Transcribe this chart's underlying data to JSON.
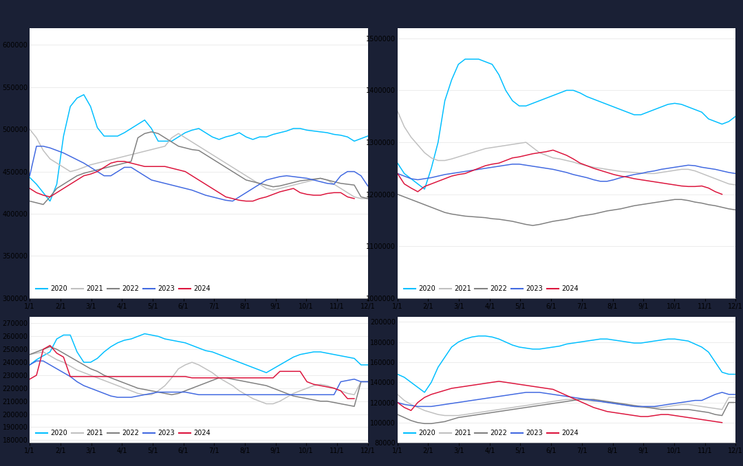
{
  "colors": {
    "2020": "#00BFFF",
    "2021": "#C0C0C0",
    "2022": "#808080",
    "2023": "#4169E1",
    "2024": "#DC143C"
  },
  "x_labels": [
    "1/1",
    "2/1",
    "3/1",
    "4/1",
    "5/1",
    "6/1",
    "7/1",
    "8/1",
    "9/1",
    "10/1",
    "11/1",
    "12/1"
  ],
  "top_left": {
    "ylim": [
      300000,
      620000
    ],
    "yticks": [
      300000,
      350000,
      400000,
      450000,
      500000,
      550000,
      600000
    ],
    "2020": [
      443000,
      435000,
      425000,
      415000,
      435000,
      492000,
      527000,
      537000,
      541000,
      527000,
      502000,
      492000,
      492000,
      492000,
      496000,
      501000,
      506000,
      511000,
      501000,
      486000,
      486000,
      486000,
      491000,
      496000,
      499000,
      501000,
      496000,
      491000,
      488000,
      491000,
      493000,
      496000,
      491000,
      488000,
      491000,
      491000,
      494000,
      496000,
      498000,
      501000,
      501000,
      499000,
      498000,
      497000,
      496000,
      494000,
      493000,
      491000,
      486000,
      489000,
      492000
    ],
    "2021": [
      500000,
      490000,
      475000,
      465000,
      460000,
      455000,
      450000,
      452000,
      455000,
      458000,
      460000,
      462000,
      464000,
      466000,
      468000,
      470000,
      472000,
      474000,
      476000,
      478000,
      480000,
      490000,
      495000,
      490000,
      485000,
      480000,
      475000,
      470000,
      465000,
      460000,
      455000,
      450000,
      445000,
      440000,
      435000,
      430000,
      428000,
      430000,
      432000,
      434000,
      436000,
      438000,
      440000,
      442000,
      440000,
      435000,
      430000,
      425000,
      420000,
      418000,
      418000
    ],
    "2022": [
      415000,
      413000,
      411000,
      420000,
      430000,
      435000,
      440000,
      445000,
      448000,
      450000,
      452000,
      454000,
      456000,
      458000,
      460000,
      462000,
      490000,
      495000,
      497000,
      495000,
      490000,
      485000,
      480000,
      478000,
      476000,
      475000,
      470000,
      465000,
      460000,
      455000,
      450000,
      445000,
      440000,
      438000,
      436000,
      434000,
      432000,
      433000,
      435000,
      437000,
      439000,
      440000,
      441000,
      442000,
      440000,
      438000,
      436000,
      435000,
      434000,
      420000,
      418000
    ],
    "2023": [
      445000,
      480000,
      480000,
      478000,
      475000,
      472000,
      468000,
      464000,
      460000,
      455000,
      450000,
      445000,
      445000,
      450000,
      455000,
      455000,
      450000,
      445000,
      440000,
      438000,
      436000,
      434000,
      432000,
      430000,
      428000,
      425000,
      422000,
      420000,
      418000,
      416000,
      415000,
      420000,
      425000,
      430000,
      435000,
      440000,
      442000,
      444000,
      445000,
      444000,
      443000,
      442000,
      440000,
      438000,
      436000,
      435000,
      445000,
      450000,
      450000,
      445000,
      433000
    ],
    "2024": [
      430000,
      425000,
      422000,
      420000,
      425000,
      430000,
      435000,
      440000,
      445000,
      447000,
      450000,
      455000,
      460000,
      462000,
      462000,
      460000,
      458000,
      456000,
      456000,
      456000,
      456000,
      454000,
      452000,
      450000,
      445000,
      440000,
      435000,
      430000,
      425000,
      420000,
      418000,
      416000,
      415000,
      415000,
      418000,
      420000,
      423000,
      426000,
      428000,
      430000,
      425000,
      423000,
      422000,
      422000,
      424000,
      425000,
      425000,
      420000,
      418000,
      null,
      null
    ]
  },
  "top_right": {
    "ylim": [
      1000000,
      1520000
    ],
    "yticks": [
      1000000,
      1100000,
      1200000,
      1300000,
      1400000,
      1500000
    ],
    "2020": [
      1260000,
      1240000,
      1230000,
      1220000,
      1210000,
      1250000,
      1300000,
      1380000,
      1420000,
      1450000,
      1460000,
      1460000,
      1460000,
      1455000,
      1450000,
      1430000,
      1400000,
      1380000,
      1370000,
      1370000,
      1375000,
      1380000,
      1385000,
      1390000,
      1395000,
      1400000,
      1400000,
      1395000,
      1388000,
      1383000,
      1378000,
      1373000,
      1368000,
      1363000,
      1358000,
      1353000,
      1353000,
      1358000,
      1363000,
      1368000,
      1373000,
      1375000,
      1373000,
      1368000,
      1363000,
      1358000,
      1345000,
      1340000,
      1335000,
      1340000,
      1350000
    ],
    "2021": [
      1360000,
      1330000,
      1310000,
      1295000,
      1280000,
      1270000,
      1265000,
      1265000,
      1268000,
      1272000,
      1276000,
      1280000,
      1284000,
      1288000,
      1290000,
      1292000,
      1294000,
      1296000,
      1298000,
      1300000,
      1290000,
      1280000,
      1275000,
      1270000,
      1268000,
      1265000,
      1262000,
      1258000,
      1255000,
      1252000,
      1250000,
      1248000,
      1246000,
      1244000,
      1243000,
      1242000,
      1241000,
      1240000,
      1240000,
      1242000,
      1244000,
      1246000,
      1248000,
      1248000,
      1245000,
      1240000,
      1235000,
      1230000,
      1225000,
      1220000,
      1218000
    ],
    "2022": [
      1200000,
      1195000,
      1190000,
      1185000,
      1180000,
      1175000,
      1170000,
      1165000,
      1162000,
      1160000,
      1158000,
      1157000,
      1156000,
      1155000,
      1153000,
      1152000,
      1150000,
      1148000,
      1145000,
      1142000,
      1140000,
      1142000,
      1145000,
      1148000,
      1150000,
      1152000,
      1155000,
      1158000,
      1160000,
      1162000,
      1165000,
      1168000,
      1170000,
      1172000,
      1175000,
      1178000,
      1180000,
      1182000,
      1184000,
      1186000,
      1188000,
      1190000,
      1190000,
      1188000,
      1185000,
      1183000,
      1180000,
      1178000,
      1175000,
      1172000,
      1170000
    ],
    "2023": [
      1240000,
      1235000,
      1230000,
      1228000,
      1230000,
      1232000,
      1235000,
      1238000,
      1240000,
      1242000,
      1244000,
      1246000,
      1248000,
      1250000,
      1252000,
      1254000,
      1256000,
      1258000,
      1258000,
      1256000,
      1254000,
      1252000,
      1250000,
      1248000,
      1245000,
      1242000,
      1238000,
      1235000,
      1232000,
      1228000,
      1225000,
      1225000,
      1228000,
      1232000,
      1235000,
      1238000,
      1240000,
      1243000,
      1245000,
      1248000,
      1250000,
      1252000,
      1254000,
      1256000,
      1255000,
      1252000,
      1250000,
      1248000,
      1245000,
      1242000,
      1240000
    ],
    "2024": [
      1240000,
      1220000,
      1212000,
      1205000,
      1215000,
      1220000,
      1225000,
      1230000,
      1235000,
      1238000,
      1240000,
      1245000,
      1250000,
      1255000,
      1258000,
      1260000,
      1265000,
      1270000,
      1272000,
      1275000,
      1278000,
      1280000,
      1282000,
      1285000,
      1280000,
      1275000,
      1268000,
      1260000,
      1255000,
      1250000,
      1246000,
      1242000,
      1238000,
      1235000,
      1233000,
      1230000,
      1228000,
      1226000,
      1224000,
      1222000,
      1220000,
      1218000,
      1216000,
      1215000,
      1215000,
      1216000,
      1212000,
      1205000,
      1200000,
      null,
      null
    ]
  },
  "bottom_left": {
    "ylim": [
      178000,
      275000
    ],
    "yticks": [
      180000,
      190000,
      200000,
      210000,
      220000,
      230000,
      240000,
      250000,
      260000,
      270000
    ],
    "2020": [
      238000,
      242000,
      245000,
      248000,
      258000,
      261000,
      261000,
      248000,
      240000,
      240000,
      243000,
      248000,
      252000,
      255000,
      257000,
      258000,
      260000,
      262000,
      261000,
      260000,
      258000,
      257000,
      256000,
      255000,
      253000,
      251000,
      249000,
      248000,
      246000,
      244000,
      242000,
      240000,
      238000,
      236000,
      234000,
      232000,
      235000,
      238000,
      241000,
      244000,
      246000,
      247000,
      248000,
      248000,
      247000,
      246000,
      245000,
      244000,
      243000,
      238000,
      238000
    ],
    "2021": [
      246000,
      247000,
      248000,
      245000,
      242000,
      240000,
      237000,
      234000,
      232000,
      230000,
      228000,
      226000,
      224000,
      222000,
      220000,
      218000,
      216000,
      215000,
      215000,
      218000,
      222000,
      228000,
      235000,
      238000,
      240000,
      238000,
      235000,
      232000,
      228000,
      225000,
      222000,
      218000,
      215000,
      212000,
      210000,
      208000,
      208000,
      210000,
      213000,
      216000,
      218000,
      220000,
      222000,
      223000,
      222000,
      220000,
      218000,
      216000,
      215000,
      225000,
      225000
    ],
    "2022": [
      246000,
      248000,
      250000,
      252000,
      250000,
      247000,
      244000,
      241000,
      238000,
      235000,
      233000,
      230000,
      228000,
      226000,
      224000,
      222000,
      220000,
      219000,
      218000,
      217000,
      216000,
      215000,
      216000,
      218000,
      220000,
      222000,
      224000,
      226000,
      228000,
      228000,
      227000,
      226000,
      225000,
      224000,
      223000,
      222000,
      220000,
      218000,
      216000,
      214000,
      213000,
      212000,
      211000,
      210000,
      210000,
      209000,
      208000,
      207000,
      206000,
      225000,
      225000
    ],
    "2023": [
      238000,
      241000,
      241000,
      238000,
      235000,
      232000,
      229000,
      225000,
      222000,
      220000,
      218000,
      216000,
      214000,
      213000,
      213000,
      213000,
      214000,
      215000,
      216000,
      217000,
      217000,
      217000,
      217000,
      217000,
      216000,
      215000,
      215000,
      215000,
      215000,
      215000,
      215000,
      215000,
      215000,
      215000,
      215000,
      215000,
      215000,
      215000,
      215000,
      215000,
      215000,
      215000,
      215000,
      215000,
      215000,
      215000,
      225000,
      226000,
      227000,
      225000,
      225000
    ],
    "2024": [
      227000,
      230000,
      250000,
      253000,
      247000,
      244000,
      229000,
      229000,
      229000,
      229000,
      229000,
      229000,
      229000,
      229000,
      229000,
      229000,
      229000,
      229000,
      229000,
      229000,
      229000,
      229000,
      229000,
      229000,
      228000,
      228000,
      228000,
      228000,
      228000,
      228000,
      228000,
      228000,
      228000,
      228000,
      228000,
      228000,
      228000,
      233000,
      233000,
      233000,
      233000,
      225000,
      223000,
      222000,
      221000,
      220000,
      218000,
      212000,
      212000,
      null,
      null
    ]
  },
  "bottom_right": {
    "ylim": [
      80000,
      205000
    ],
    "yticks": [
      80000,
      100000,
      120000,
      140000,
      160000,
      180000,
      200000
    ],
    "2020": [
      148000,
      145000,
      140000,
      135000,
      130000,
      140000,
      155000,
      165000,
      175000,
      180000,
      183000,
      185000,
      186000,
      186000,
      185000,
      183000,
      180000,
      177000,
      175000,
      174000,
      173000,
      173000,
      174000,
      175000,
      176000,
      178000,
      179000,
      180000,
      181000,
      182000,
      183000,
      183000,
      182000,
      181000,
      180000,
      179000,
      179000,
      180000,
      181000,
      182000,
      183000,
      183000,
      182000,
      181000,
      178000,
      175000,
      170000,
      160000,
      150000,
      148000,
      148000
    ],
    "2021": [
      128000,
      122000,
      118000,
      115000,
      112000,
      110000,
      108000,
      107000,
      107000,
      107000,
      108000,
      109000,
      110000,
      111000,
      112000,
      113000,
      114000,
      115000,
      116000,
      117000,
      118000,
      119000,
      120000,
      121000,
      122000,
      123000,
      123000,
      123000,
      122000,
      121000,
      121000,
      120000,
      119000,
      118000,
      117000,
      116000,
      115000,
      115000,
      115000,
      115000,
      116000,
      117000,
      118000,
      118000,
      117000,
      116000,
      115000,
      114000,
      113000,
      125000,
      125000
    ],
    "2022": [
      108000,
      105000,
      102000,
      100000,
      99000,
      99000,
      100000,
      101000,
      103000,
      105000,
      106000,
      107000,
      108000,
      109000,
      110000,
      111000,
      112000,
      113000,
      114000,
      115000,
      116000,
      117000,
      118000,
      119000,
      120000,
      121000,
      122000,
      123000,
      123000,
      123000,
      122000,
      121000,
      120000,
      119000,
      118000,
      117000,
      116000,
      115000,
      114000,
      113000,
      113000,
      113000,
      113000,
      113000,
      112000,
      111000,
      110000,
      108000,
      107000,
      120000,
      120000
    ],
    "2023": [
      120000,
      118000,
      117000,
      116000,
      116000,
      116000,
      117000,
      118000,
      119000,
      120000,
      121000,
      122000,
      123000,
      124000,
      125000,
      126000,
      127000,
      128000,
      129000,
      130000,
      130000,
      130000,
      129000,
      128000,
      127000,
      126000,
      125000,
      124000,
      123000,
      122000,
      121000,
      120000,
      119000,
      118000,
      117000,
      116000,
      116000,
      116000,
      116000,
      117000,
      118000,
      119000,
      120000,
      121000,
      122000,
      122000,
      125000,
      128000,
      130000,
      128000,
      128000
    ],
    "2024": [
      120000,
      115000,
      112000,
      120000,
      125000,
      128000,
      130000,
      132000,
      134000,
      135000,
      136000,
      137000,
      138000,
      139000,
      140000,
      141000,
      140000,
      139000,
      138000,
      137000,
      136000,
      135000,
      134000,
      133000,
      130000,
      127000,
      124000,
      121000,
      118000,
      115000,
      113000,
      111000,
      110000,
      109000,
      108000,
      107000,
      106000,
      106000,
      107000,
      108000,
      108000,
      107000,
      106000,
      105000,
      104000,
      103000,
      102000,
      101000,
      100000,
      null,
      null
    ]
  },
  "legend_years": [
    "2020",
    "2021",
    "2022",
    "2023",
    "2024"
  ],
  "outer_bg": "#1a2035",
  "panel_bg": "#ffffff",
  "stripe_color": "#1a73c7"
}
